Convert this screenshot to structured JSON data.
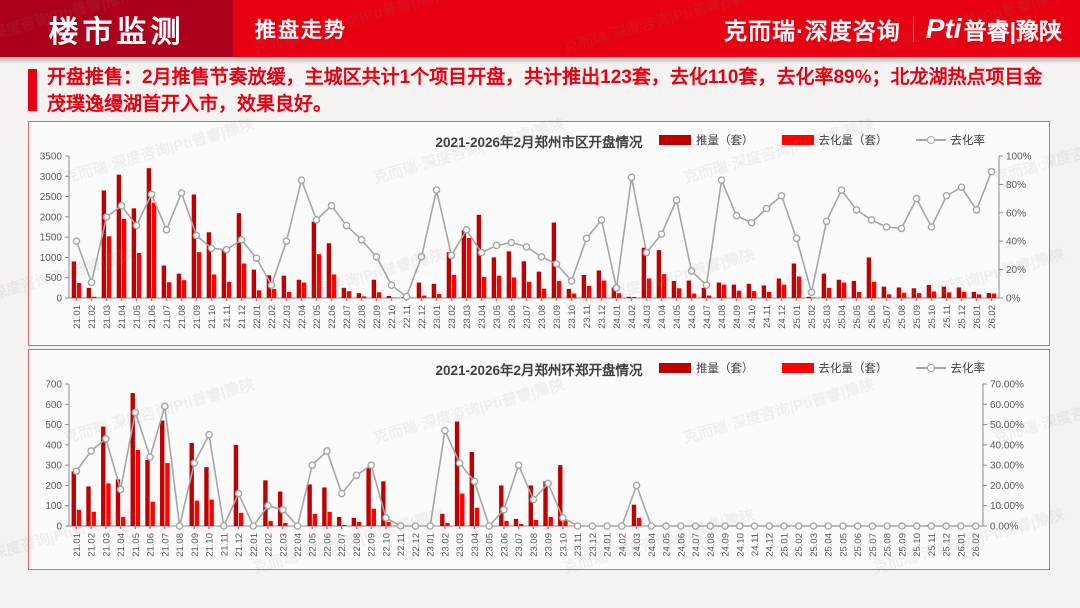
{
  "header": {
    "title": "楼市监测",
    "subtitle": "推盘走势",
    "brand_left": "克而瑞·深度咨询",
    "brand_pti": "Pti",
    "brand_right": "普睿|豫陕"
  },
  "intro": {
    "text": "开盘推售：2月推售节奏放缓，主城区共计1个项目开盘，共计推出123套，去化110套，去化率89%；北龙湖热点项目金茂璞逸缦湖首开入市，效果良好。"
  },
  "theme": {
    "header_red": "#e60012",
    "header_dark_red": "#ad001d",
    "panel_border": "#e06666",
    "bar_push": "#c00000",
    "bar_sell": "#ff0000",
    "line_rate": "#a6a6a6",
    "axis_text": "#595959"
  },
  "watermark": {
    "text": "克而瑞·深度咨询|Pti普睿|豫陕"
  },
  "chart_data": [
    {
      "type": "bar+line",
      "title": "2021-2026年2月郑州市区开盘情况",
      "legend_position": "top-right",
      "grid": false,
      "categories": [
        "21.01",
        "21.02",
        "21.03",
        "21.04",
        "21.05",
        "21.06",
        "21.07",
        "21.08",
        "21.09",
        "21.10",
        "21.11",
        "21.12",
        "22.01",
        "22.02",
        "22.03",
        "22.04",
        "22.05",
        "22.06",
        "22.07",
        "22.08",
        "22.09",
        "22.10",
        "22.11",
        "22.12",
        "23.01",
        "23.02",
        "23.03",
        "23.04",
        "23.05",
        "23.06",
        "23.07",
        "23.08",
        "23.09",
        "23.10",
        "23.11",
        "23.12",
        "24.01",
        "24.02",
        "24.03",
        "24.04",
        "24.05",
        "24.06",
        "24.07",
        "24.08",
        "24.09",
        "24.10",
        "24.11",
        "24.12",
        "25.01",
        "25.02",
        "25.03",
        "25.04",
        "25.05",
        "25.06",
        "25.07",
        "25.08",
        "25.09",
        "25.10",
        "25.11",
        "25.12",
        "26.01",
        "26.02"
      ],
      "y_left": {
        "min": 0,
        "max": 3500,
        "step": 500
      },
      "y_right": {
        "min": 0,
        "max": 100,
        "step": 20,
        "decimals": 0,
        "suffix": "%"
      },
      "series": [
        {
          "name": "推量（套）",
          "type": "bar",
          "axis": "left",
          "color": "#c00000",
          "values": [
            900,
            250,
            2650,
            3040,
            2210,
            3200,
            800,
            600,
            2550,
            1620,
            1180,
            2090,
            700,
            560,
            550,
            450,
            1880,
            1350,
            250,
            120,
            450,
            50,
            20,
            380,
            350,
            1130,
            1670,
            2050,
            1000,
            1150,
            905,
            650,
            1860,
            225,
            570,
            680,
            260,
            30,
            1240,
            1180,
            420,
            430,
            250,
            380,
            330,
            350,
            310,
            480,
            850,
            30,
            600,
            450,
            420,
            1000,
            280,
            260,
            240,
            320,
            280,
            260,
            150,
            123
          ]
        },
        {
          "name": "去化量（套）",
          "type": "bar",
          "axis": "left",
          "color": "#ff0000",
          "values": [
            370,
            30,
            1520,
            1950,
            1110,
            2350,
            390,
            440,
            1130,
            580,
            400,
            850,
            190,
            220,
            150,
            380,
            1080,
            580,
            170,
            40,
            140,
            10,
            5,
            60,
            100,
            570,
            1480,
            520,
            550,
            505,
            400,
            230,
            420,
            110,
            300,
            430,
            120,
            25,
            480,
            590,
            240,
            110,
            60,
            330,
            180,
            170,
            150,
            330,
            530,
            10,
            250,
            380,
            150,
            400,
            90,
            130,
            120,
            160,
            140,
            150,
            90,
            110
          ]
        },
        {
          "name": "去化率",
          "type": "line",
          "axis": "right",
          "color": "#a6a6a6",
          "marker": "circle",
          "values": [
            40,
            11,
            57,
            65,
            51,
            73,
            48,
            74,
            44,
            35,
            34,
            41,
            28,
            9,
            40,
            83,
            55,
            65,
            51,
            41,
            29,
            9,
            1,
            29,
            76,
            30,
            48,
            32,
            37,
            39,
            36,
            29,
            24,
            12,
            42,
            55,
            7,
            85,
            32,
            45,
            69,
            19,
            9,
            83,
            58,
            53,
            63,
            72,
            42,
            4,
            54,
            76,
            62,
            55,
            50,
            49,
            70,
            50,
            72,
            78,
            62,
            89
          ]
        }
      ]
    },
    {
      "type": "bar+line",
      "title": "2021-2026年2月郑州环郑开盘情况",
      "legend_position": "top-right",
      "grid": false,
      "categories": [
        "21.01",
        "21.02",
        "21.03",
        "21.04",
        "21.05",
        "21.06",
        "21.07",
        "21.08",
        "21.09",
        "21.10",
        "21.11",
        "21.12",
        "22.01",
        "22.02",
        "22.03",
        "22.04",
        "22.05",
        "22.06",
        "22.07",
        "22.08",
        "22.09",
        "22.10",
        "22.11",
        "22.12",
        "23.01",
        "23.02",
        "23.03",
        "23.04",
        "23.05",
        "23.06",
        "23.07",
        "23.08",
        "23.09",
        "23.10",
        "23.11",
        "23.12",
        "24.01",
        "24.02",
        "24.03",
        "24.04",
        "24.05",
        "24.06",
        "24.07",
        "24.08",
        "24.09",
        "24.10",
        "24.11",
        "24.12",
        "25.01",
        "25.02",
        "25.03",
        "25.04",
        "25.05",
        "25.06",
        "25.07",
        "25.08",
        "25.09",
        "25.10",
        "25.11",
        "25.12",
        "26.01",
        "26.02"
      ],
      "y_left": {
        "min": 0,
        "max": 700,
        "step": 100
      },
      "y_right": {
        "min": 0,
        "max": 70,
        "step": 10,
        "decimals": 2,
        "suffix": "%"
      },
      "series": [
        {
          "name": "推量（套）",
          "type": "bar",
          "axis": "left",
          "color": "#c00000",
          "values": [
            270,
            195,
            490,
            230,
            655,
            325,
            520,
            0,
            410,
            290,
            0,
            400,
            0,
            225,
            170,
            0,
            205,
            190,
            45,
            40,
            290,
            220,
            0,
            0,
            0,
            60,
            515,
            365,
            0,
            200,
            35,
            200,
            220,
            300,
            0,
            0,
            0,
            0,
            105,
            0,
            0,
            0,
            0,
            0,
            0,
            0,
            0,
            0,
            0,
            0,
            0,
            0,
            0,
            0,
            0,
            0,
            0,
            0,
            5,
            0,
            0,
            0
          ]
        },
        {
          "name": "去化量（套）",
          "type": "bar",
          "axis": "left",
          "color": "#ff0000",
          "values": [
            80,
            70,
            210,
            45,
            375,
            120,
            310,
            0,
            125,
            130,
            0,
            65,
            0,
            25,
            15,
            0,
            60,
            70,
            5,
            20,
            85,
            20,
            0,
            0,
            0,
            15,
            160,
            90,
            0,
            25,
            10,
            30,
            45,
            30,
            0,
            0,
            0,
            0,
            40,
            0,
            0,
            0,
            0,
            0,
            0,
            0,
            0,
            0,
            0,
            0,
            0,
            0,
            0,
            0,
            0,
            0,
            0,
            0,
            0,
            0,
            0,
            0
          ]
        },
        {
          "name": "去化率",
          "type": "line",
          "axis": "right",
          "color": "#a6a6a6",
          "marker": "circle",
          "values": [
            27,
            37,
            43,
            18,
            56,
            34,
            59,
            0,
            31,
            45,
            0,
            16,
            0,
            10,
            8,
            0,
            30,
            37,
            16,
            25,
            30,
            4,
            0,
            0,
            0,
            47,
            31,
            22,
            0,
            8,
            30,
            13,
            21,
            4,
            0,
            0,
            0,
            0,
            20,
            0,
            0,
            0,
            0,
            0,
            0,
            0,
            0,
            0,
            0,
            0,
            0,
            0,
            0,
            0,
            0,
            0,
            0,
            0,
            0,
            0,
            0,
            0
          ]
        }
      ]
    }
  ]
}
